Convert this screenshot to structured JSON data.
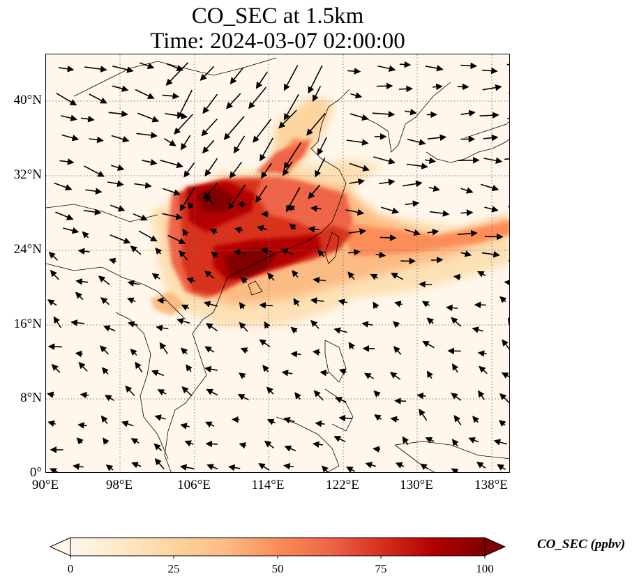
{
  "title": {
    "line1": "CO_SEC at 1.5km",
    "line2": "Time: 2024-03-07 02:00:00"
  },
  "map": {
    "projection": "PlateCarree",
    "lon_range": [
      90,
      140
    ],
    "lat_range": [
      0,
      45
    ],
    "gridlines": "dotted",
    "lat_ticks": [
      "40°N",
      "32°N",
      "24°N",
      "16°N",
      "8°N",
      "0°"
    ],
    "lon_ticks": [
      "90°E",
      "98°E",
      "106°E",
      "114°E",
      "122°E",
      "130°E",
      "138°E"
    ],
    "field_colormap": "OrRd",
    "overlay": "wind-vectors"
  },
  "colorbar": {
    "label": "CO_SEC (ppbv)",
    "ticks": [
      "0",
      "25",
      "50",
      "75",
      "100"
    ],
    "colors": [
      "#fff7ec",
      "#fee8c8",
      "#fdd49e",
      "#fdbb84",
      "#fc8d59",
      "#ef6548",
      "#d7301f",
      "#b30000",
      "#7f0000"
    ],
    "extend": "both"
  }
}
